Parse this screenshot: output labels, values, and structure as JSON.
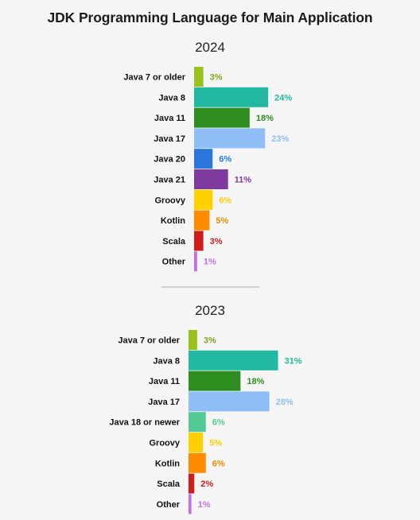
{
  "title": "JDK Programming Language for Main Application",
  "chart_data": [
    {
      "type": "bar",
      "orientation": "horizontal",
      "title": "2024",
      "categories": [
        "Java 7 or older",
        "Java 8",
        "Java 11",
        "Java 17",
        "Java 20",
        "Java 21",
        "Groovy",
        "Kotlin",
        "Scala",
        "Other"
      ],
      "values": [
        3,
        24,
        18,
        23,
        6,
        11,
        6,
        5,
        3,
        1
      ],
      "value_labels": [
        "3%",
        "24%",
        "18%",
        "23%",
        "6%",
        "11%",
        "6%",
        "5%",
        "3%",
        "1%"
      ],
      "colors": [
        "#99c21c",
        "#23b8a2",
        "#2d8e1f",
        "#8fbdf5",
        "#2b76db",
        "#7e3a9c",
        "#ffd000",
        "#ff8c00",
        "#cd1d1d",
        "#c270e8"
      ],
      "label_colors": [
        "#7ea718",
        "#23b8a2",
        "#2d8e1f",
        "#8fbdf5",
        "#2b76db",
        "#7e3a9c",
        "#ffcf00",
        "#f08a00",
        "#cd1d1d",
        "#c270e8"
      ],
      "xlim": [
        0,
        35
      ],
      "grid": false,
      "legend": "none"
    },
    {
      "type": "bar",
      "orientation": "horizontal",
      "title": "2023",
      "categories": [
        "Java 7 or older",
        "Java 8",
        "Java 11",
        "Java 17",
        "Java 18 or newer",
        "Groovy",
        "Kotlin",
        "Scala",
        "Other"
      ],
      "values": [
        3,
        31,
        18,
        28,
        6,
        5,
        6,
        2,
        1
      ],
      "value_labels": [
        "3%",
        "31%",
        "18%",
        "28%",
        "6%",
        "5%",
        "6%",
        "2%",
        "1%"
      ],
      "colors": [
        "#99c21c",
        "#23b8a2",
        "#2d8e1f",
        "#8fbdf5",
        "#53c995",
        "#ffd000",
        "#ff8c00",
        "#cd1d1d",
        "#c270e8"
      ],
      "label_colors": [
        "#7ea718",
        "#23b8a2",
        "#2d8e1f",
        "#8fbdf5",
        "#53c995",
        "#ffcf00",
        "#f08a00",
        "#cd1d1d",
        "#c270e8"
      ],
      "xlim": [
        0,
        35
      ],
      "grid": false,
      "legend": "none"
    }
  ]
}
